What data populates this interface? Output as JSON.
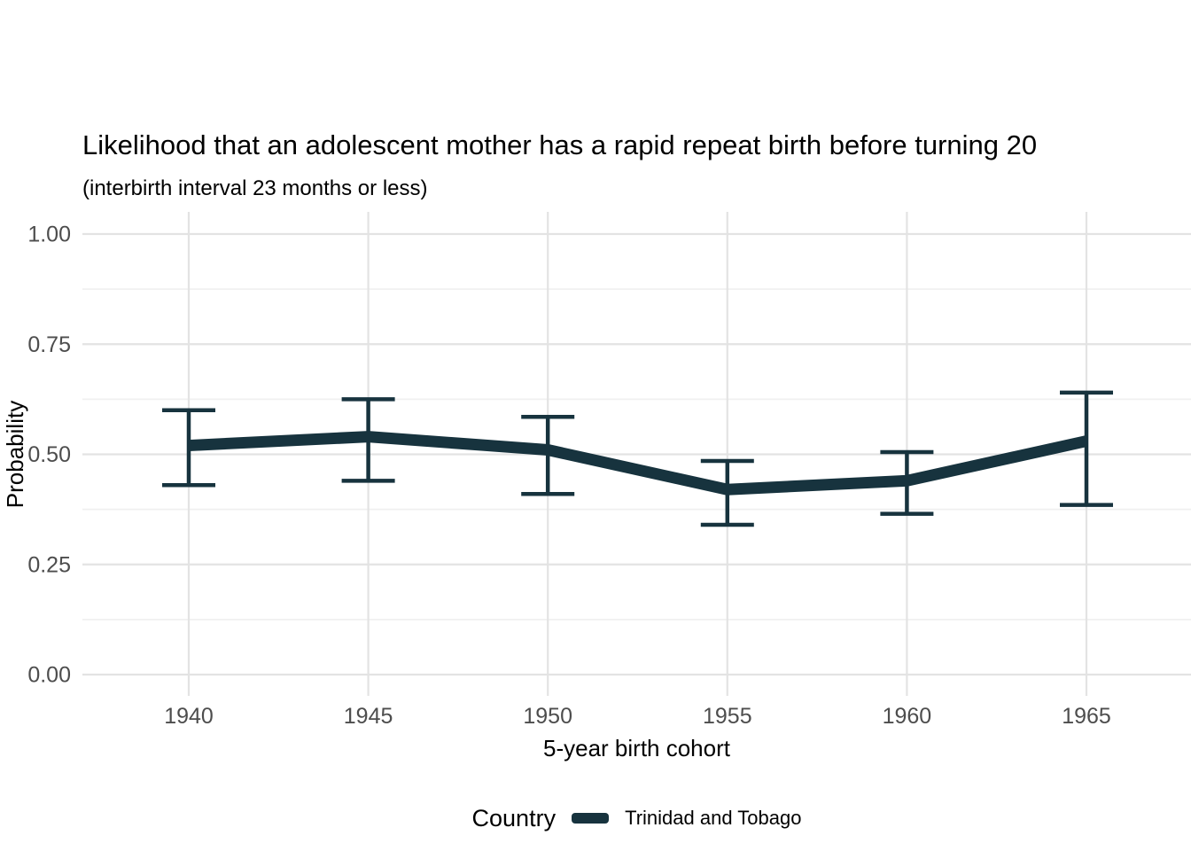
{
  "chart_data": {
    "type": "line",
    "title": "Likelihood that an adolescent mother has a rapid repeat birth before turning 20",
    "subtitle": "(interbirth interval 23 months or less)",
    "x": [
      "1940",
      "1945",
      "1950",
      "1955",
      "1960",
      "1965"
    ],
    "series": [
      {
        "name": "Trinidad and Tobago",
        "color": "#17333E",
        "values": [
          0.52,
          0.54,
          0.51,
          0.42,
          0.44,
          0.53
        ],
        "ci_lower": [
          0.43,
          0.44,
          0.41,
          0.34,
          0.365,
          0.385
        ],
        "ci_upper": [
          0.6,
          0.625,
          0.585,
          0.485,
          0.505,
          0.64
        ]
      }
    ],
    "xlabel": "5-year birth cohort",
    "ylabel": "Probability",
    "ylim": [
      0,
      1
    ],
    "yticks": [
      0,
      0.25,
      0.5,
      0.75,
      1
    ],
    "ytick_labels": [
      "0.00",
      "0.25",
      "0.50",
      "0.75",
      "1.00"
    ],
    "grid": "horizontal major+minor, vertical major only",
    "legend": {
      "title": "Country",
      "position": "bottom"
    },
    "error_bars": true
  },
  "colors": {
    "line": "#17333E",
    "grid_major": "#E3E3E3",
    "grid_minor": "#F0F0F0",
    "tick_label": "#4D4D4D",
    "text": "#000000",
    "background": "#FFFFFF"
  }
}
